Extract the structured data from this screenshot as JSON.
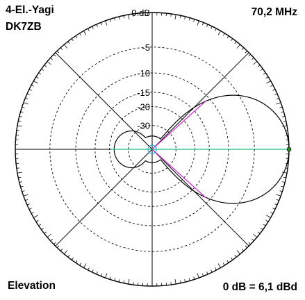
{
  "header": {
    "antenna": "4-El.-Yagi",
    "callsign": "DK7ZB",
    "frequency": "70,2 MHz"
  },
  "footer": {
    "view": "Elevation",
    "reference": "0 dB = 6,1 dBd"
  },
  "chart_data": {
    "type": "polar",
    "view": "Elevation",
    "reference_note": "0 dB = 6,1 dBd",
    "rings_db": [
      "0 dB",
      "-5",
      "-10",
      "-15",
      "-20",
      "-30"
    ],
    "ring_values_db": [
      0,
      -5,
      -10,
      -15,
      -20,
      -30
    ],
    "pattern": {
      "main_lobe_peak_angle_deg": 0,
      "main_lobe_half_width_deg": 42,
      "back_lobe_level_db": -22,
      "back_lobe_beamwidth_deg": 130
    },
    "colors": {
      "pattern": "#000000",
      "beam_lines": "#cc33cc",
      "axis_line": "#33cc33",
      "axis_overlay": "#00aaff"
    },
    "grid": true,
    "radial_lines_deg": [
      0,
      45,
      90,
      135,
      180,
      225,
      270,
      315
    ]
  }
}
